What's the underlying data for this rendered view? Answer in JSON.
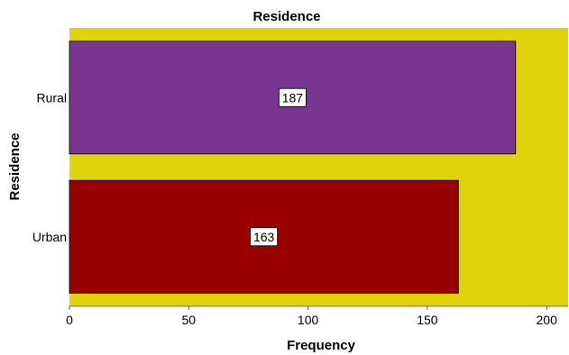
{
  "chart_data": {
    "type": "bar",
    "orientation": "horizontal",
    "title": "Residence",
    "xlabel": "Frequency",
    "ylabel": "Residence",
    "categories": [
      "Rural",
      "Urban"
    ],
    "values": [
      187,
      163
    ],
    "data_labels": [
      "187",
      "163"
    ],
    "xlim": [
      0,
      209
    ],
    "xticks": [
      0,
      50,
      100,
      150,
      200
    ],
    "xtick_labels": [
      "0",
      "50",
      "100",
      "150",
      "200"
    ],
    "bar_colors": [
      "#783690",
      "#990000"
    ],
    "plot_background": "#e1d30a",
    "grid": false,
    "legend": "none"
  }
}
